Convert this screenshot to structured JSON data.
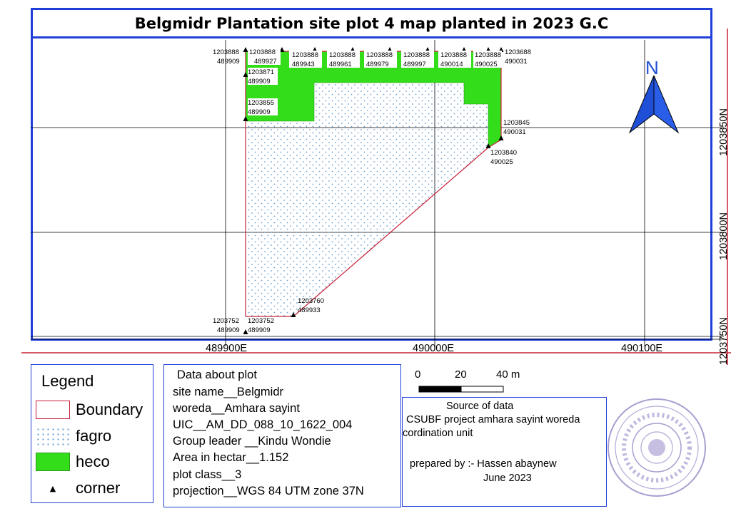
{
  "title": "Belgmidr Plantation site plot 4 map planted in 2023 G.C",
  "map": {
    "x_ticks": [
      "489900E",
      "490000E",
      "490100E"
    ],
    "y_ticks": [
      "1203850N",
      "1203800N",
      "1203750N"
    ],
    "north_label": "N",
    "corner_labels": [
      {
        "n": "1203888",
        "e": "489909"
      },
      {
        "n": "1203888",
        "e": "489927"
      },
      {
        "n": "1203871",
        "e": "489909"
      },
      {
        "n": "1203855",
        "e": "489909"
      },
      {
        "n": "1203888",
        "e": "489943"
      },
      {
        "n": "1203888",
        "e": "489961"
      },
      {
        "n": "1203888",
        "e": "489979"
      },
      {
        "n": "1203888",
        "e": "489997"
      },
      {
        "n": "1203888",
        "e": "490014"
      },
      {
        "n": "1203888",
        "e": "490025"
      },
      {
        "n": "1203688",
        "e": "490031"
      },
      {
        "n": "1203845",
        "e": "490031"
      },
      {
        "n": "1203840",
        "e": "490025"
      },
      {
        "n": "1203760",
        "e": "489933"
      },
      {
        "n": "1203752",
        "e": "489909"
      },
      {
        "n": "1203752",
        "e": "489909"
      }
    ],
    "colors": {
      "heco": "#33dd1a",
      "fagro_dots": "#6a9fd0",
      "boundary": "#c8203a",
      "frame": "#1f3fd9",
      "arrow": "#1f4fd6"
    }
  },
  "legend": {
    "title": "Legend",
    "items": [
      {
        "label": "Boundary",
        "symbol": "red-outline-box"
      },
      {
        "label": "fagro",
        "symbol": "blue-dot-pattern"
      },
      {
        "label": "heco",
        "symbol": "green-fill"
      },
      {
        "label": "corner",
        "symbol": "triangle-icon"
      }
    ]
  },
  "plot_info": {
    "heading": "Data about plot",
    "lines": [
      "site name__Belgmidr",
      "woreda__Amhara sayint",
      "UIC__AM_DD_088_10_1622_004",
      "Group leader __Kindu Wondie",
      "Area in hectar__1.152",
      "plot class__3",
      "projection__WGS 84 UTM zone 37N"
    ]
  },
  "scale": {
    "labels": [
      "0",
      "20",
      "40 m"
    ]
  },
  "source": {
    "heading": "Source of data",
    "line1": "CSUBF project amhara sayint woreda",
    "line2": "cordination unit",
    "prepared": "prepared by :- Hassen abaynew",
    "date": "June 2023"
  }
}
